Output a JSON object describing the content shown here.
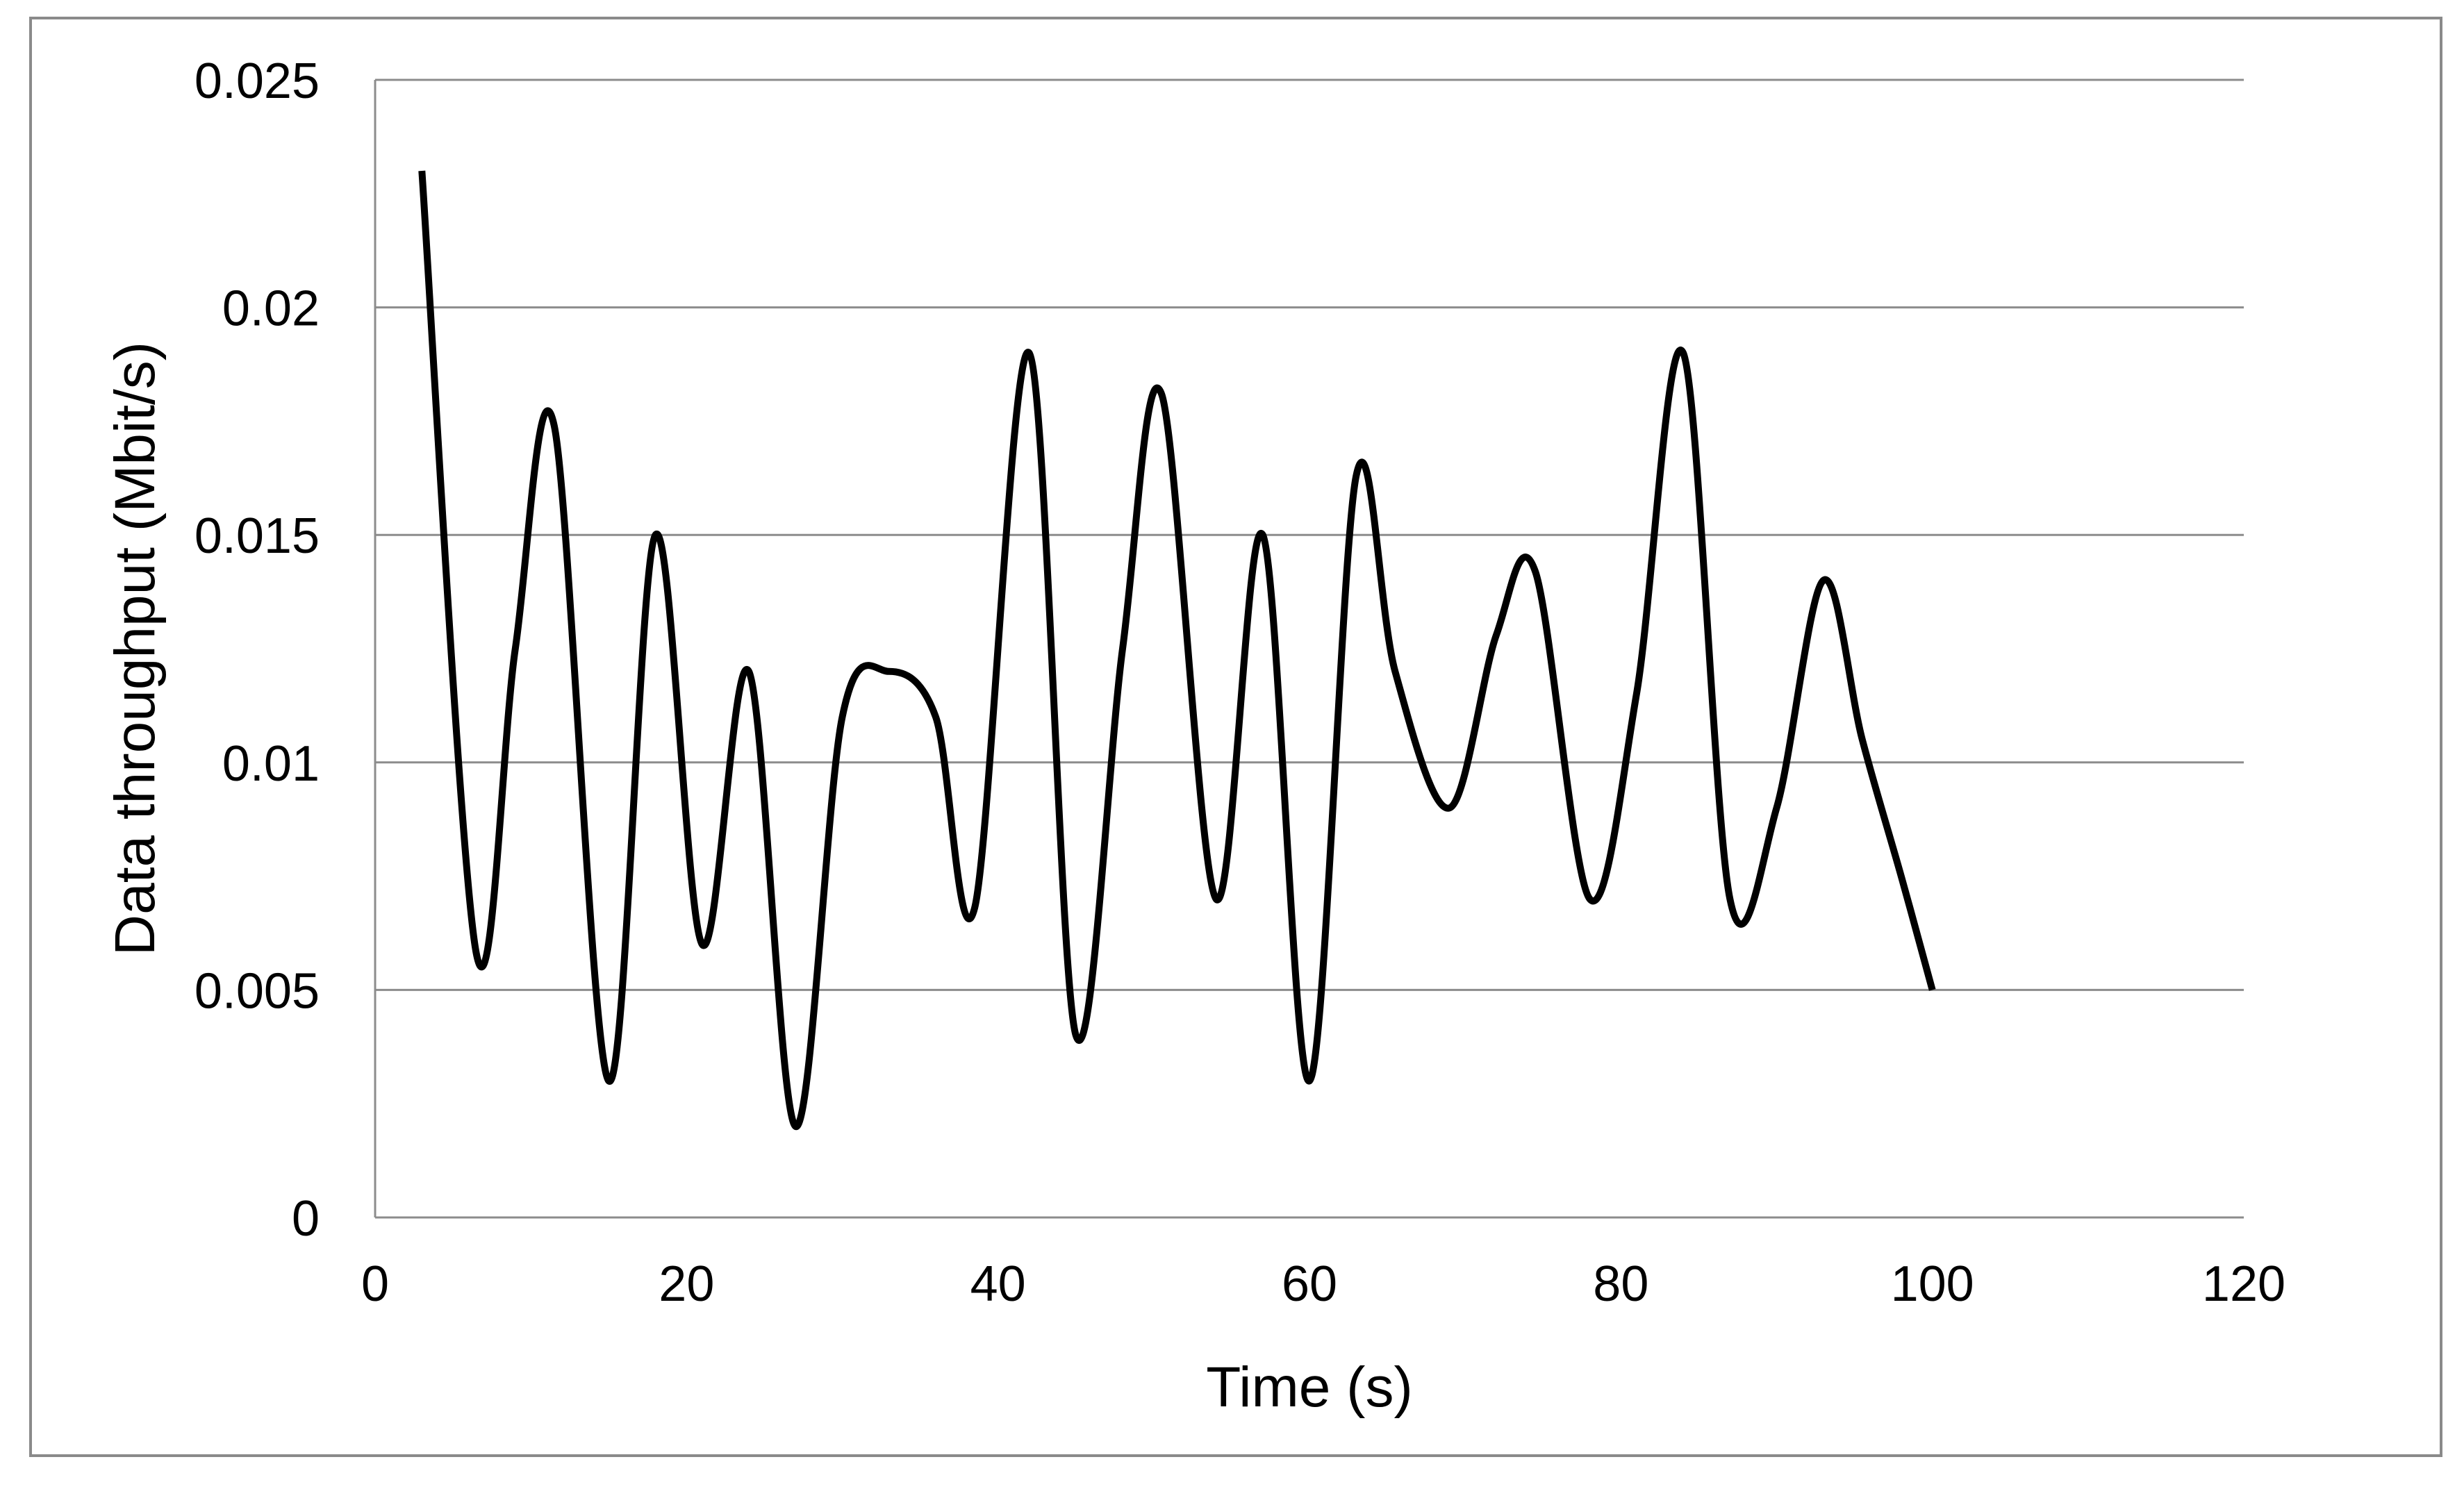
{
  "chart_data": {
    "type": "line",
    "title": "",
    "xlabel": "Time (s)",
    "ylabel": "Data throughput (Mbit/s)",
    "xlim": [
      0,
      120
    ],
    "ylim": [
      0,
      0.025
    ],
    "x_ticks": [
      0,
      20,
      40,
      60,
      80,
      100,
      120
    ],
    "x_tick_labels": [
      "0",
      "20",
      "40",
      "60",
      "80",
      "100",
      "120"
    ],
    "y_ticks": [
      0,
      0.005,
      0.01,
      0.015,
      0.02,
      0.025
    ],
    "y_tick_labels": [
      "0",
      "0.005",
      "0.01",
      "0.015",
      "0.02",
      "0.025"
    ],
    "grid": "horizontal",
    "legend": "none",
    "series": [
      {
        "color": "#000000",
        "smooth": true,
        "points": [
          [
            3,
            0.023
          ],
          [
            6.5,
            0.0058
          ],
          [
            9,
            0.0125
          ],
          [
            11.5,
            0.0174
          ],
          [
            15,
            0.003
          ],
          [
            18,
            0.015
          ],
          [
            21,
            0.006
          ],
          [
            24,
            0.012
          ],
          [
            27,
            0.002
          ],
          [
            30,
            0.011
          ],
          [
            33,
            0.012
          ],
          [
            36,
            0.011
          ],
          [
            38.5,
            0.0068
          ],
          [
            42,
            0.019
          ],
          [
            45,
            0.004
          ],
          [
            48,
            0.0125
          ],
          [
            50.5,
            0.0181
          ],
          [
            54,
            0.007
          ],
          [
            57,
            0.015
          ],
          [
            60,
            0.003
          ],
          [
            63,
            0.0163
          ],
          [
            65.5,
            0.012
          ],
          [
            69,
            0.009
          ],
          [
            72,
            0.0128
          ],
          [
            74.5,
            0.0142
          ],
          [
            78,
            0.007
          ],
          [
            81,
            0.0115
          ],
          [
            84,
            0.019
          ],
          [
            87,
            0.007
          ],
          [
            90,
            0.009
          ],
          [
            93,
            0.014
          ],
          [
            95.5,
            0.0105
          ],
          [
            98,
            0.0075
          ],
          [
            100,
            0.005
          ]
        ]
      }
    ]
  }
}
